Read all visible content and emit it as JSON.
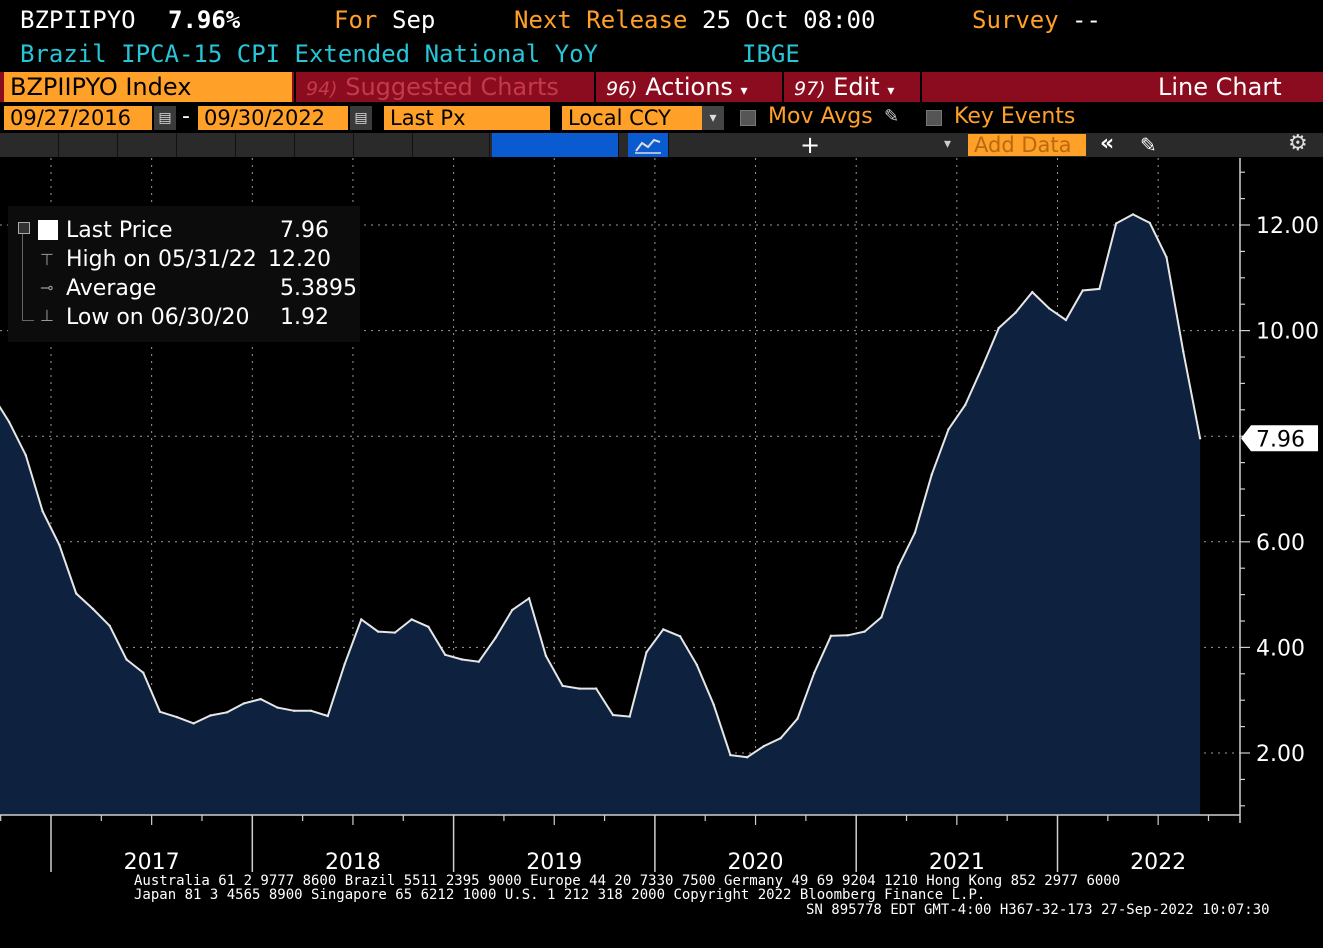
{
  "header": {
    "ticker": "BZPIIPYO",
    "last_value": "7.96%",
    "for_label": "For",
    "for_period": "Sep",
    "next_release_label": "Next Release",
    "next_release_value": "25 Oct 08:00",
    "survey_label": "Survey",
    "survey_value": "--",
    "description": "Brazil IPCA-15 CPI Extended National YoY",
    "source": "IBGE"
  },
  "toolbar": {
    "security": "BZPIIPYO Index",
    "suggested_num": "94)",
    "suggested_label": "Suggested Charts",
    "actions_num": "96)",
    "actions_label": "Actions",
    "edit_num": "97)",
    "edit_label": "Edit",
    "chart_type": "Line Chart"
  },
  "controls": {
    "start_date": "09/27/2016",
    "date_sep": "-",
    "end_date": "09/30/2022",
    "field": "Last Px",
    "currency": "Local CCY",
    "mov_avgs": "Mov Avgs",
    "key_events": "Key Events",
    "add_data": "Add Data"
  },
  "legend": {
    "last_label": "Last Price",
    "last_value": "7.96",
    "high_label": "High on 05/31/22",
    "high_value": "12.20",
    "avg_label": "Average",
    "avg_value": "5.3895",
    "low_label": "Low on 06/30/20",
    "low_value": "1.92"
  },
  "colors": {
    "amber": "#ffa028",
    "cyan": "#27c5d8",
    "toolbar_red": "#8b0c1f",
    "area_fill": "#0e2240",
    "line": "#e6e6e6"
  },
  "chart_data": {
    "type": "area",
    "x": [
      "2016-09",
      "2016-10",
      "2016-11",
      "2016-12",
      "2017-01",
      "2017-02",
      "2017-03",
      "2017-04",
      "2017-05",
      "2017-06",
      "2017-07",
      "2017-08",
      "2017-09",
      "2017-10",
      "2017-11",
      "2017-12",
      "2018-01",
      "2018-02",
      "2018-03",
      "2018-04",
      "2018-05",
      "2018-06",
      "2018-07",
      "2018-08",
      "2018-09",
      "2018-10",
      "2018-11",
      "2018-12",
      "2019-01",
      "2019-02",
      "2019-03",
      "2019-04",
      "2019-05",
      "2019-06",
      "2019-07",
      "2019-08",
      "2019-09",
      "2019-10",
      "2019-11",
      "2019-12",
      "2020-01",
      "2020-02",
      "2020-03",
      "2020-04",
      "2020-05",
      "2020-06",
      "2020-07",
      "2020-08",
      "2020-09",
      "2020-10",
      "2020-11",
      "2020-12",
      "2021-01",
      "2021-02",
      "2021-03",
      "2021-04",
      "2021-05",
      "2021-06",
      "2021-07",
      "2021-08",
      "2021-09",
      "2021-10",
      "2021-11",
      "2021-12",
      "2022-01",
      "2022-02",
      "2022-03",
      "2022-04",
      "2022-05",
      "2022-06",
      "2022-07",
      "2022-08",
      "2022-09"
    ],
    "series": [
      {
        "values": [
          8.78,
          8.27,
          7.64,
          6.58,
          5.94,
          5.02,
          4.73,
          4.41,
          3.77,
          3.52,
          2.78,
          2.68,
          2.56,
          2.71,
          2.77,
          2.94,
          3.02,
          2.86,
          2.8,
          2.8,
          2.7,
          3.68,
          4.53,
          4.3,
          4.28,
          4.53,
          4.39,
          3.86,
          3.77,
          3.73,
          4.18,
          4.71,
          4.93,
          3.84,
          3.27,
          3.22,
          3.22,
          2.72,
          2.69,
          3.91,
          4.34,
          4.21,
          3.67,
          2.92,
          1.96,
          1.92,
          2.13,
          2.28,
          2.65,
          3.52,
          4.22,
          4.23,
          4.3,
          4.57,
          5.52,
          6.17,
          7.27,
          8.13,
          8.59,
          9.3,
          10.05,
          10.34,
          10.73,
          10.42,
          10.2,
          10.76,
          10.79,
          12.03,
          12.2,
          12.04,
          11.39,
          9.6,
          7.96
        ]
      }
    ],
    "y_ticks": [
      "2.00",
      "4.00",
      "6.00",
      "8.00",
      "10.00",
      "12.00"
    ],
    "y_ticks_shown": [
      "2.00",
      "4.00",
      "6.00",
      "10.00",
      "12.00"
    ],
    "last_marker": "7.96",
    "x_labels": [
      "2017",
      "2018",
      "2019",
      "2020",
      "2021",
      "2022"
    ],
    "ylim": [
      0.9,
      13.2
    ],
    "grid": true
  },
  "footer": {
    "line1": "Australia 61 2 9777 8600 Brazil 5511 2395 9000 Europe 44 20 7330 7500 Germany 49 69 9204 1210 Hong Kong 852 2977 6000",
    "line2": "Japan 81 3 4565 8900       Singapore 65 6212 1000       U.S. 1 212 318 2000             Copyright 2022 Bloomberg Finance L.P.",
    "line3": "SN 895778 EDT  GMT-4:00 H367-32-173 27-Sep-2022 10:07:30"
  }
}
